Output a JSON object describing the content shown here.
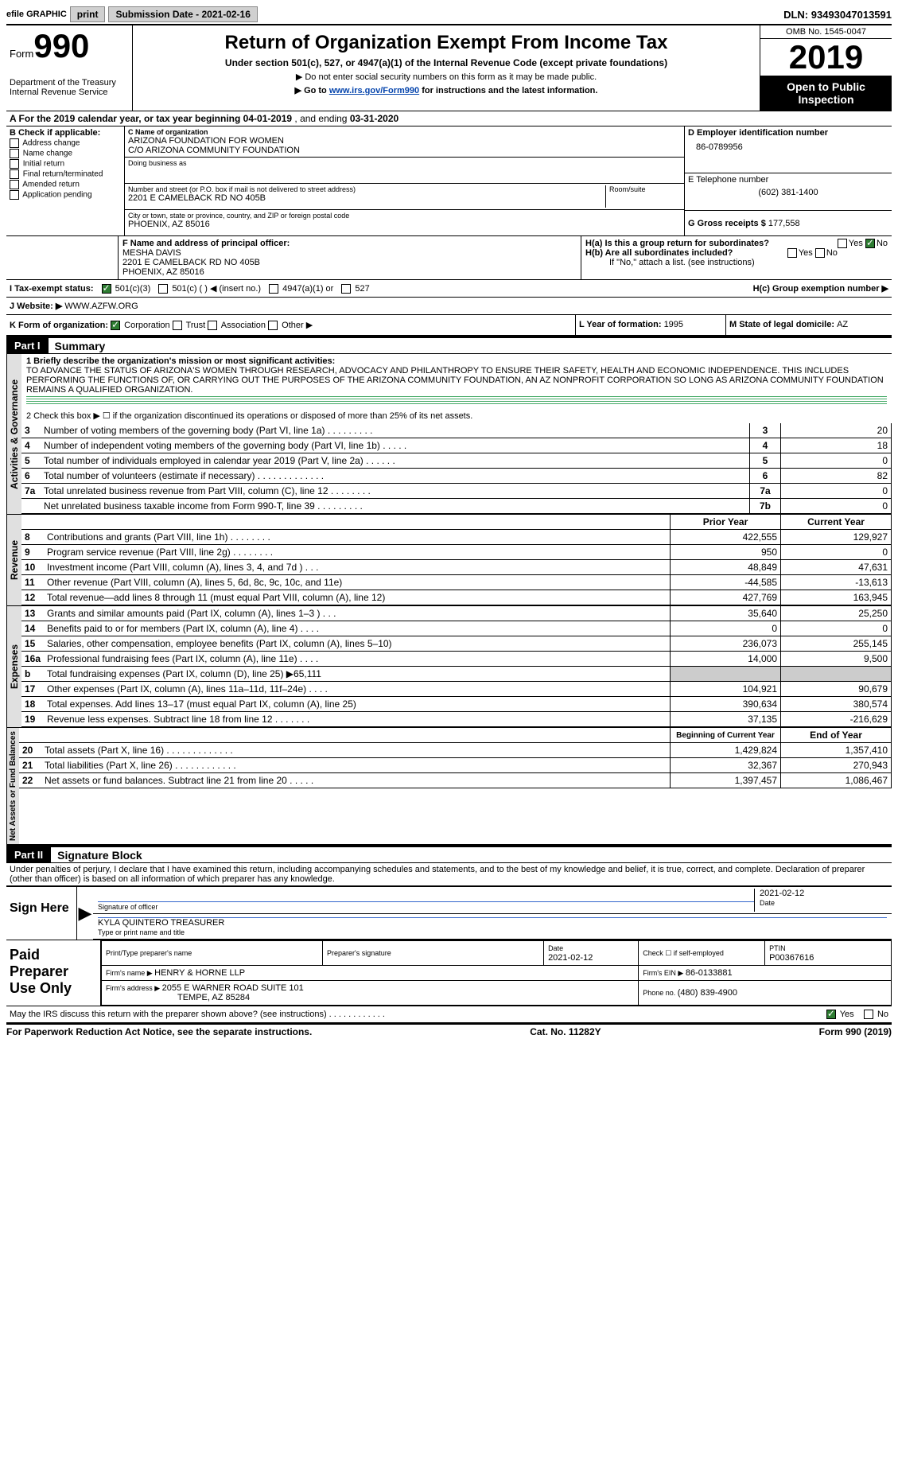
{
  "top": {
    "efile": "efile GRAPHIC",
    "print": "print",
    "submission_label": "Submission Date - ",
    "submission_date": "2021-02-16",
    "dln_label": "DLN: ",
    "dln": "93493047013591"
  },
  "header": {
    "form_prefix": "Form",
    "form_no": "990",
    "dept": "Department of the Treasury\nInternal Revenue Service",
    "title": "Return of Organization Exempt From Income Tax",
    "sub": "Under section 501(c), 527, or 4947(a)(1) of the Internal Revenue Code (except private foundations)",
    "note1": "▶ Do not enter social security numbers on this form as it may be made public.",
    "note2_pre": "▶ Go to ",
    "note2_link": "www.irs.gov/Form990",
    "note2_post": " for instructions and the latest information.",
    "omb": "OMB No. 1545-0047",
    "year": "2019",
    "open": "Open to Public Inspection"
  },
  "A": {
    "text": "A For the 2019 calendar year, or tax year beginning ",
    "begin": "04-01-2019",
    "mid": " , and ending ",
    "end": "03-31-2020"
  },
  "B": {
    "label": "B Check if applicable:",
    "items": [
      "Address change",
      "Name change",
      "Initial return",
      "Final return/terminated",
      "Amended return",
      "Application pending"
    ]
  },
  "C": {
    "label": "C Name of organization",
    "name1": "ARIZONA FOUNDATION FOR WOMEN",
    "name2": "C/O ARIZONA COMMUNITY FOUNDATION",
    "dba_label": "Doing business as",
    "street_label": "Number and street (or P.O. box if mail is not delivered to street address)",
    "room_label": "Room/suite",
    "street": "2201 E CAMELBACK RD NO 405B",
    "city_label": "City or town, state or province, country, and ZIP or foreign postal code",
    "city": "PHOENIX, AZ  85016"
  },
  "D": {
    "label": "D Employer identification number",
    "ein": "86-0789956"
  },
  "E": {
    "label": "E Telephone number",
    "phone": "(602) 381-1400"
  },
  "G": {
    "label": "G Gross receipts $ ",
    "amount": "177,558"
  },
  "F": {
    "label": "F  Name and address of principal officer:",
    "name": "MESHA DAVIS",
    "addr1": "2201 E CAMELBACK RD NO 405B",
    "addr2": "PHOENIX, AZ  85016"
  },
  "H": {
    "a": "H(a)  Is this a group return for subordinates?",
    "b": "H(b)  Are all subordinates included?",
    "note": "If \"No,\" attach a list. (see instructions)",
    "c": "H(c)  Group exemption number ▶",
    "yes": "Yes",
    "no": "No"
  },
  "I": {
    "label": "I    Tax-exempt status:",
    "c3": "501(c)(3)",
    "c": "501(c) (   ) ◀ (insert no.)",
    "a1": "4947(a)(1) or",
    "527": "527"
  },
  "J": {
    "label": "J   Website: ▶",
    "value": " WWW.AZFW.ORG"
  },
  "K": {
    "label": "K Form of organization:",
    "corp": "Corporation",
    "trust": "Trust",
    "assoc": "Association",
    "other": "Other ▶"
  },
  "L": {
    "label": "L Year of formation: ",
    "value": "1995"
  },
  "M": {
    "label": "M State of legal domicile: ",
    "value": "AZ"
  },
  "part1": {
    "bar": "Part I",
    "title": "Summary"
  },
  "summary": {
    "l1_label": "1  Briefly describe the organization's mission or most significant activities:",
    "l1_text": "TO ADVANCE THE STATUS OF ARIZONA'S WOMEN THROUGH RESEARCH, ADVOCACY AND PHILANTHROPY TO ENSURE THEIR SAFETY, HEALTH AND ECONOMIC INDEPENDENCE. THIS INCLUDES PERFORMING THE FUNCTIONS OF, OR CARRYING OUT THE PURPOSES OF THE ARIZONA COMMUNITY FOUNDATION, AN AZ NONPROFIT CORPORATION SO LONG AS ARIZONA COMMUNITY FOUNDATION REMAINS A QUALIFIED ORGANIZATION.",
    "l2": "2   Check this box ▶ ☐  if the organization discontinued its operations or disposed of more than 25% of its net assets.",
    "lines_gov": [
      {
        "n": "3",
        "desc": "Number of voting members of the governing body (Part VI, line 1a)   .    .    .    .    .    .    .    .    .",
        "col": "3",
        "val": "20"
      },
      {
        "n": "4",
        "desc": "Number of independent voting members of the governing body (Part VI, line 1b)    .    .    .    .    .",
        "col": "4",
        "val": "18"
      },
      {
        "n": "5",
        "desc": "Total number of individuals employed in calendar year 2019 (Part V, line 2a)   .    .    .    .    .    .",
        "col": "5",
        "val": "0"
      },
      {
        "n": "6",
        "desc": "Total number of volunteers (estimate if necessary)    .    .    .    .    .    .    .    .    .    .    .    .    .",
        "col": "6",
        "val": "82"
      },
      {
        "n": "7a",
        "desc": "Total unrelated business revenue from Part VIII, column (C), line 12    .    .    .    .    .    .    .    .",
        "col": "7a",
        "val": "0"
      },
      {
        "n": "",
        "desc": "Net unrelated business taxable income from Form 990-T, line 39    .    .    .    .    .    .    .    .    .",
        "col": "7b",
        "val": "0"
      }
    ],
    "head_prior": "Prior Year",
    "head_curr": "Current Year",
    "revenue": [
      {
        "n": "8",
        "desc": "Contributions and grants (Part VIII, line 1h)    .    .    .    .    .    .    .    .",
        "p": "422,555",
        "c": "129,927"
      },
      {
        "n": "9",
        "desc": "Program service revenue (Part VIII, line 2g)    .    .    .    .    .    .    .    .",
        "p": "950",
        "c": "0"
      },
      {
        "n": "10",
        "desc": "Investment income (Part VIII, column (A), lines 3, 4, and 7d )    .    .    .",
        "p": "48,849",
        "c": "47,631"
      },
      {
        "n": "11",
        "desc": "Other revenue (Part VIII, column (A), lines 5, 6d, 8c, 9c, 10c, and 11e)",
        "p": "-44,585",
        "c": "-13,613"
      },
      {
        "n": "12",
        "desc": "Total revenue—add lines 8 through 11 (must equal Part VIII, column (A), line 12)",
        "p": "427,769",
        "c": "163,945"
      }
    ],
    "expenses": [
      {
        "n": "13",
        "desc": "Grants and similar amounts paid (Part IX, column (A), lines 1–3 )    .    .    .",
        "p": "35,640",
        "c": "25,250"
      },
      {
        "n": "14",
        "desc": "Benefits paid to or for members (Part IX, column (A), line 4)    .    .    .    .",
        "p": "0",
        "c": "0"
      },
      {
        "n": "15",
        "desc": "Salaries, other compensation, employee benefits (Part IX, column (A), lines 5–10)",
        "p": "236,073",
        "c": "255,145"
      },
      {
        "n": "16a",
        "desc": "Professional fundraising fees (Part IX, column (A), line 11e)    .    .    .    .",
        "p": "14,000",
        "c": "9,500"
      },
      {
        "n": "b",
        "desc": "Total fundraising expenses (Part IX, column (D), line 25) ▶65,111",
        "p": "",
        "c": ""
      },
      {
        "n": "17",
        "desc": "Other expenses (Part IX, column (A), lines 11a–11d, 11f–24e)    .    .    .    .",
        "p": "104,921",
        "c": "90,679"
      },
      {
        "n": "18",
        "desc": "Total expenses. Add lines 13–17 (must equal Part IX, column (A), line 25)",
        "p": "390,634",
        "c": "380,574"
      },
      {
        "n": "19",
        "desc": "Revenue less expenses. Subtract line 18 from line 12   .    .    .    .    .    .    .",
        "p": "37,135",
        "c": "-216,629"
      }
    ],
    "head_beg": "Beginning of Current Year",
    "head_end": "End of Year",
    "net": [
      {
        "n": "20",
        "desc": "Total assets (Part X, line 16)    .    .    .    .    .    .    .    .    .    .    .    .    .",
        "p": "1,429,824",
        "c": "1,357,410"
      },
      {
        "n": "21",
        "desc": "Total liabilities (Part X, line 26)    .    .    .    .    .    .    .    .    .    .    .    .",
        "p": "32,367",
        "c": "270,943"
      },
      {
        "n": "22",
        "desc": "Net assets or fund balances. Subtract line 21 from line 20    .    .    .    .    .",
        "p": "1,397,457",
        "c": "1,086,467"
      }
    ],
    "tab_gov": "Activities & Governance",
    "tab_rev": "Revenue",
    "tab_exp": "Expenses",
    "tab_net": "Net Assets or Fund Balances"
  },
  "part2": {
    "bar": "Part II",
    "title": "Signature Block",
    "perjury": "Under penalties of perjury, I declare that I have examined this return, including accompanying schedules and statements, and to the best of my knowledge and belief, it is true, correct, and complete. Declaration of preparer (other than officer) is based on all information of which preparer has any knowledge."
  },
  "sign": {
    "label": "Sign Here",
    "sig_officer": "Signature of officer",
    "date": "2021-02-12",
    "name": "KYLA QUINTERO  TREASURER",
    "type_label": "Type or print name and title"
  },
  "paid": {
    "label": "Paid Preparer Use Only",
    "h_print": "Print/Type preparer's name",
    "h_sig": "Preparer's signature",
    "h_date": "Date",
    "date": "2021-02-12",
    "check_label": "Check ☐ if self-employed",
    "ptin_label": "PTIN",
    "ptin": "P00367616",
    "firm_name_label": "Firm's name    ▶ ",
    "firm_name": "HENRY & HORNE LLP",
    "firm_ein_label": "Firm's EIN ▶ ",
    "firm_ein": "86-0133881",
    "firm_addr_label": "Firm's address ▶ ",
    "firm_addr1": "2055 E WARNER ROAD SUITE 101",
    "firm_addr2": "TEMPE, AZ  85284",
    "phone_label": "Phone no. ",
    "phone": "(480) 839-4900"
  },
  "discuss": {
    "q": "May the IRS discuss this return with the preparer shown above? (see instructions)    .    .    .    .    .    .    .    .    .    .    .    .",
    "yes": "Yes",
    "no": "No"
  },
  "footer": {
    "left": "For Paperwork Reduction Act Notice, see the separate instructions.",
    "mid": "Cat. No. 11282Y",
    "right": "Form 990 (2019)"
  }
}
